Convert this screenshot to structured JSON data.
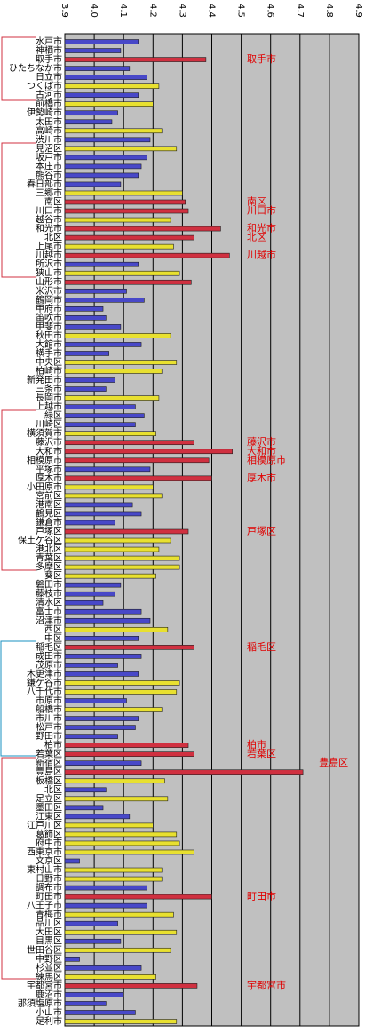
{
  "chart_data": {
    "type": "bar",
    "orientation": "horizontal",
    "categories": [
      "水戸市",
      "神栖市",
      "取手市",
      "ひたちなか市",
      "日立市",
      "つくば市",
      "古河市",
      "前橋市",
      "伊勢崎市",
      "太田市",
      "高崎市",
      "渋川市",
      "見沼区",
      "坂戸市",
      "本庄市",
      "熊谷市",
      "春日部市",
      "三郷市",
      "南区",
      "川口市",
      "越谷市",
      "和光市",
      "北区",
      "上尾市",
      "川越市",
      "所沢市",
      "狭山市",
      "山形市",
      "米沢市",
      "鶴岡市",
      "甲府市",
      "笛吹市",
      "甲斐市",
      "秋田市",
      "大館市",
      "横手市",
      "中央区",
      "柏崎市",
      "新発田市",
      "三条市",
      "長岡市",
      "上越市",
      "緑区",
      "川崎区",
      "横須賀市",
      "藤沢市",
      "大和市",
      "相模原市",
      "平塚市",
      "厚木市",
      "小田原市",
      "宮前区",
      "港南区",
      "鶴見区",
      "鎌倉市",
      "戸塚区",
      "保土ケ谷区",
      "港北区",
      "青葉区",
      "多摩区",
      "葵区",
      "磐田市",
      "藤枝市",
      "清水区",
      "富士市",
      "沼津市",
      "西区",
      "中区",
      "稲毛区",
      "成田市",
      "茂原市",
      "木更津市",
      "鎌ケ谷市",
      "八千代市",
      "市原市",
      "船橋市",
      "市川市",
      "松戸市",
      "野田市",
      "柏市",
      "若葉区",
      "新宿区",
      "豊島区",
      "板橋区",
      "北区",
      "足立区",
      "墨田区",
      "江東区",
      "江戸川区",
      "葛飾区",
      "府中市",
      "西東京市",
      "文京区",
      "東村山市",
      "日野市",
      "調布市",
      "町田市",
      "八王子市",
      "青梅市",
      "品川区",
      "大田区",
      "目黒区",
      "世田谷区",
      "中野区",
      "杉並区",
      "練馬区",
      "宇都宮市",
      "鹿沼市",
      "那須塩原市",
      "小山市",
      "足利市"
    ],
    "values": [
      4.15,
      4.09,
      4.38,
      4.12,
      4.18,
      4.22,
      4.15,
      4.2,
      4.08,
      4.06,
      4.23,
      4.19,
      4.28,
      4.18,
      4.16,
      4.15,
      4.09,
      4.3,
      4.31,
      4.32,
      4.26,
      4.43,
      4.34,
      4.27,
      4.46,
      4.15,
      4.29,
      4.33,
      4.11,
      4.17,
      4.03,
      4.04,
      4.09,
      4.26,
      4.16,
      4.05,
      4.28,
      4.23,
      4.07,
      4.04,
      4.22,
      4.14,
      4.17,
      4.14,
      4.21,
      4.34,
      4.47,
      4.39,
      4.19,
      4.4,
      4.2,
      4.23,
      4.13,
      4.16,
      4.07,
      4.32,
      4.26,
      4.22,
      4.29,
      4.29,
      4.21,
      4.09,
      4.07,
      4.03,
      4.16,
      4.19,
      4.25,
      4.15,
      4.34,
      4.16,
      4.08,
      4.15,
      4.29,
      4.28,
      4.11,
      4.23,
      4.15,
      4.14,
      4.08,
      4.32,
      4.34,
      4.16,
      4.71,
      4.24,
      4.04,
      4.25,
      4.03,
      4.12,
      4.2,
      4.28,
      4.29,
      4.34,
      3.95,
      4.23,
      4.23,
      4.18,
      4.4,
      4.18,
      4.27,
      4.08,
      4.28,
      4.09,
      4.26,
      3.95,
      4.16,
      4.21,
      4.35,
      4.1,
      4.04,
      4.14,
      4.28
    ],
    "colors": [
      "#4848c8",
      "#4848c8",
      "#d03040",
      "#4848c8",
      "#4848c8",
      "#e8e030",
      "#4848c8",
      "#e8e030",
      "#4848c8",
      "#4848c8",
      "#e8e030",
      "#4848c8",
      "#e8e030",
      "#4848c8",
      "#4848c8",
      "#4848c8",
      "#4848c8",
      "#e8e030",
      "#d03040",
      "#d03040",
      "#e8e030",
      "#d03040",
      "#d03040",
      "#e8e030",
      "#d03040",
      "#4848c8",
      "#e8e030",
      "#d03040",
      "#4848c8",
      "#4848c8",
      "#4848c8",
      "#4848c8",
      "#4848c8",
      "#e8e030",
      "#4848c8",
      "#4848c8",
      "#e8e030",
      "#e8e030",
      "#4848c8",
      "#4848c8",
      "#e8e030",
      "#4848c8",
      "#4848c8",
      "#4848c8",
      "#e8e030",
      "#d03040",
      "#d03040",
      "#d03040",
      "#4848c8",
      "#d03040",
      "#e8e030",
      "#e8e030",
      "#4848c8",
      "#4848c8",
      "#4848c8",
      "#d03040",
      "#e8e030",
      "#e8e030",
      "#e8e030",
      "#e8e030",
      "#e8e030",
      "#4848c8",
      "#4848c8",
      "#4848c8",
      "#4848c8",
      "#4848c8",
      "#e8e030",
      "#4848c8",
      "#d03040",
      "#4848c8",
      "#4848c8",
      "#4848c8",
      "#e8e030",
      "#e8e030",
      "#4848c8",
      "#e8e030",
      "#4848c8",
      "#4848c8",
      "#4848c8",
      "#d03040",
      "#d03040",
      "#4848c8",
      "#d03040",
      "#e8e030",
      "#4848c8",
      "#e8e030",
      "#4848c8",
      "#4848c8",
      "#e8e030",
      "#e8e030",
      "#e8e030",
      "#e8e030",
      "#4848c8",
      "#e8e030",
      "#e8e030",
      "#4848c8",
      "#d03040",
      "#4848c8",
      "#e8e030",
      "#4848c8",
      "#e8e030",
      "#4848c8",
      "#e8e030",
      "#4848c8",
      "#4848c8",
      "#e8e030",
      "#d03040",
      "#4848c8",
      "#4848c8",
      "#4848c8",
      "#e8e030"
    ],
    "xlim": [
      3.9,
      4.9
    ],
    "xticks": [
      3.9,
      {
        "value": 4,
        "label": "4.0"
      },
      4.1,
      4.2,
      4.3,
      4.4,
      4.5,
      4.6,
      4.7,
      4.8,
      4.9
    ],
    "grid": true,
    "background": "#c0c0c0",
    "annotation_color": "#e00000",
    "annotations": [
      "取手市",
      "南区",
      "川口市",
      "和光市",
      "北区",
      "川越市",
      "藤沢市",
      "大和市",
      "相模原市",
      "厚木市",
      "戸塚区",
      "稲毛区",
      "柏市",
      "若葉区",
      "豊島区",
      "町田市",
      "宇都宮市"
    ]
  }
}
